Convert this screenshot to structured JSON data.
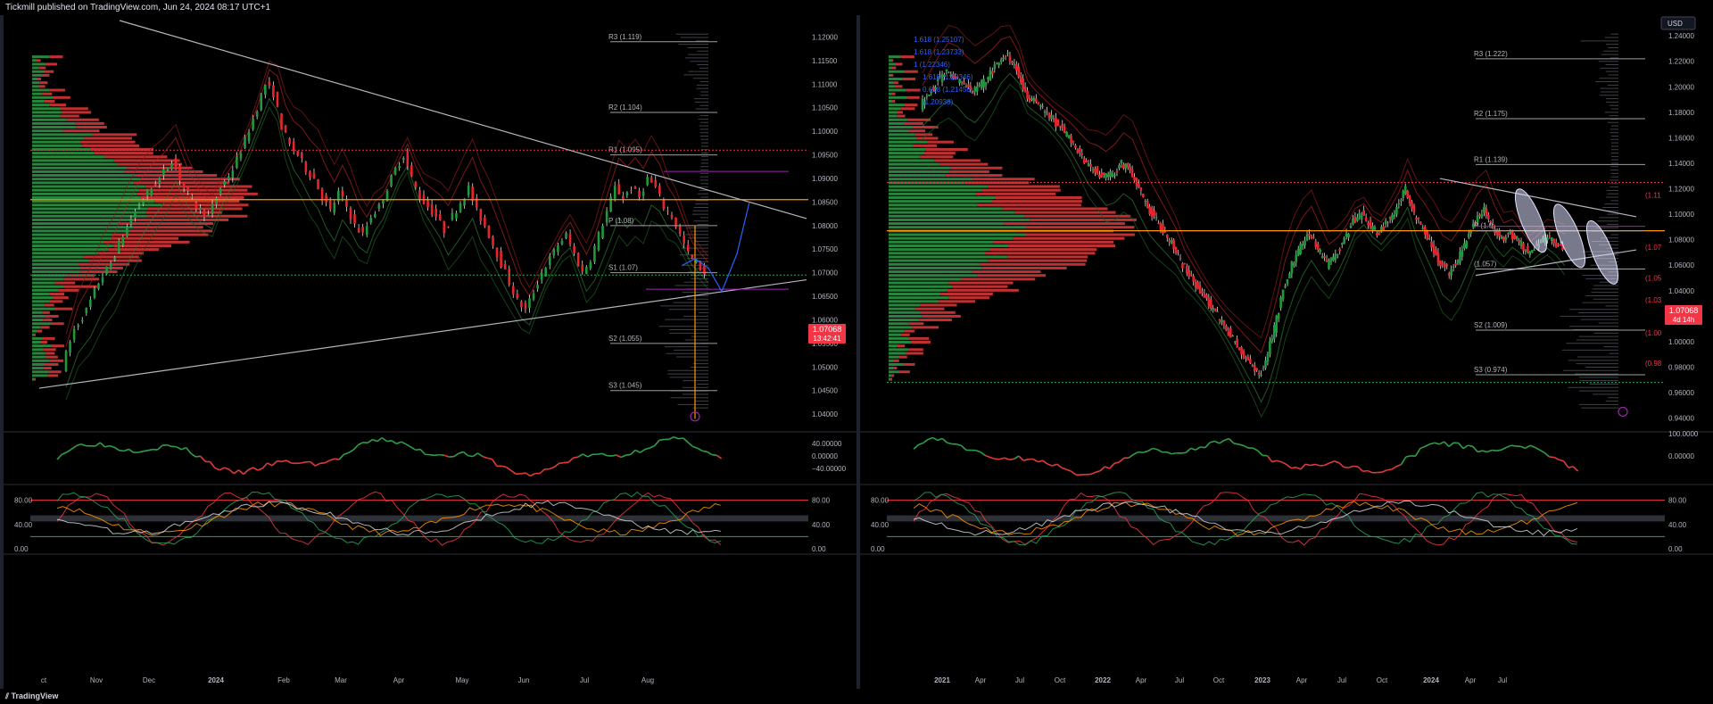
{
  "header": {
    "published_text": "Tickmill published on TradingView.com, Jun 24, 2024 08:17 UTC+1"
  },
  "footer": {
    "logo_text": "TradingView"
  },
  "colors": {
    "up": "#26a65b",
    "down": "#f23645",
    "poc": "#ff9800",
    "pivot": "#9e9e9e",
    "purple": "#9c27b0",
    "blue_path": "#2962ff",
    "trendline": "#b2b5be"
  },
  "chart_data": [
    {
      "type": "candlestick",
      "panel": "left",
      "x_tick_labels": [
        "ct",
        "Nov",
        "Dec",
        "2024",
        "Feb",
        "Mar",
        "Apr",
        "May",
        "Jun",
        "Jul",
        "Aug"
      ],
      "y_tick_labels": [
        "1.12000",
        "1.11500",
        "1.11000",
        "1.10500",
        "1.10000",
        "1.09500",
        "1.09000",
        "1.08500",
        "1.08000",
        "1.07500",
        "1.07000",
        "1.06500",
        "1.06000",
        "1.05500",
        "1.05000",
        "1.04500",
        "1.04000"
      ],
      "ylim": [
        1.037,
        1.1235
      ],
      "price_badge": {
        "price": "1.07068",
        "timer": "13:42:41"
      },
      "close_path": [
        [
          0,
          1.05
        ],
        [
          3,
          1.058
        ],
        [
          6,
          1.062
        ],
        [
          9,
          1.068
        ],
        [
          12,
          1.072
        ],
        [
          15,
          1.078
        ],
        [
          18,
          1.083
        ],
        [
          21,
          1.087
        ],
        [
          24,
          1.09
        ],
        [
          27,
          1.094
        ],
        [
          30,
          1.088
        ],
        [
          33,
          1.084
        ],
        [
          36,
          1.082
        ],
        [
          39,
          1.088
        ],
        [
          42,
          1.092
        ],
        [
          45,
          1.098
        ],
        [
          48,
          1.105
        ],
        [
          50,
          1.11
        ],
        [
          52,
          1.108
        ],
        [
          54,
          1.101
        ],
        [
          56,
          1.097
        ],
        [
          58,
          1.095
        ],
        [
          60,
          1.092
        ],
        [
          62,
          1.09
        ],
        [
          64,
          1.086
        ],
        [
          66,
          1.083
        ],
        [
          68,
          1.087
        ],
        [
          70,
          1.084
        ],
        [
          72,
          1.08
        ],
        [
          74,
          1.078
        ],
        [
          76,
          1.082
        ],
        [
          78,
          1.084
        ],
        [
          80,
          1.088
        ],
        [
          82,
          1.092
        ],
        [
          84,
          1.095
        ],
        [
          86,
          1.09
        ],
        [
          88,
          1.086
        ],
        [
          90,
          1.084
        ],
        [
          92,
          1.082
        ],
        [
          94,
          1.079
        ],
        [
          96,
          1.082
        ],
        [
          98,
          1.085
        ],
        [
          100,
          1.088
        ],
        [
          102,
          1.083
        ],
        [
          104,
          1.08
        ],
        [
          106,
          1.076
        ],
        [
          108,
          1.072
        ],
        [
          110,
          1.068
        ],
        [
          112,
          1.064
        ],
        [
          114,
          1.062
        ],
        [
          116,
          1.066
        ],
        [
          118,
          1.07
        ],
        [
          120,
          1.073
        ],
        [
          122,
          1.076
        ],
        [
          124,
          1.078
        ],
        [
          126,
          1.074
        ],
        [
          128,
          1.07
        ],
        [
          130,
          1.073
        ],
        [
          132,
          1.078
        ],
        [
          134,
          1.083
        ],
        [
          136,
          1.088
        ],
        [
          138,
          1.086
        ],
        [
          140,
          1.088
        ],
        [
          142,
          1.086
        ],
        [
          144,
          1.09
        ],
        [
          146,
          1.088
        ],
        [
          148,
          1.084
        ],
        [
          150,
          1.082
        ],
        [
          152,
          1.078
        ],
        [
          154,
          1.074
        ],
        [
          156,
          1.072
        ],
        [
          158,
          1.07
        ]
      ],
      "horizontal_levels": [
        {
          "name": "R3",
          "price": 1.119,
          "label": "R3 (1.119)"
        },
        {
          "name": "R2",
          "price": 1.104,
          "label": "R2 (1.104)"
        },
        {
          "name": "R1",
          "price": 1.095,
          "label": "R1 (1.095)"
        },
        {
          "name": "P",
          "price": 1.08,
          "label": "P (1.08)"
        },
        {
          "name": "S1",
          "price": 1.07,
          "label": "S1 (1.07)"
        },
        {
          "name": "S2",
          "price": 1.055,
          "label": "S2 (1.055)"
        },
        {
          "name": "S3",
          "price": 1.045,
          "label": "S3 (1.045)"
        }
      ],
      "poc_price": 1.0855,
      "rsi_panel": {
        "y_tick_labels": [
          "40.00000",
          "0.00000",
          "−40.00000"
        ]
      },
      "stoch_panel": {
        "y_tick_labels": [
          "80.00",
          "40.00",
          "0.00"
        ]
      }
    },
    {
      "type": "candlestick",
      "panel": "right",
      "currency": "USD",
      "x_tick_labels": [
        "2021",
        "Apr",
        "Jul",
        "Oct",
        "2022",
        "Apr",
        "Jul",
        "Oct",
        "2023",
        "Apr",
        "Jul",
        "Oct",
        "2024",
        "Apr",
        "Jul"
      ],
      "y_tick_labels": [
        "1.24000",
        "1.22000",
        "1.20000",
        "1.18000",
        "1.16000",
        "1.14000",
        "1.12000",
        "1.10000",
        "1.08000",
        "1.06000",
        "1.04000",
        "1.02000",
        "1.00000",
        "0.98000",
        "0.96000",
        "0.94000"
      ],
      "ylim": [
        0.932,
        1.252
      ],
      "price_badge": {
        "price": "1.07068",
        "timer": "4d 14h"
      },
      "close_path": [
        [
          0,
          1.185
        ],
        [
          4,
          1.195
        ],
        [
          8,
          1.205
        ],
        [
          12,
          1.212
        ],
        [
          16,
          1.208
        ],
        [
          20,
          1.2
        ],
        [
          24,
          1.195
        ],
        [
          28,
          1.202
        ],
        [
          32,
          1.21
        ],
        [
          36,
          1.22
        ],
        [
          40,
          1.225
        ],
        [
          44,
          1.215
        ],
        [
          48,
          1.195
        ],
        [
          52,
          1.188
        ],
        [
          56,
          1.182
        ],
        [
          60,
          1.175
        ],
        [
          64,
          1.168
        ],
        [
          68,
          1.16
        ],
        [
          72,
          1.15
        ],
        [
          76,
          1.14
        ],
        [
          80,
          1.135
        ],
        [
          84,
          1.128
        ],
        [
          88,
          1.132
        ],
        [
          92,
          1.14
        ],
        [
          96,
          1.135
        ],
        [
          100,
          1.12
        ],
        [
          104,
          1.105
        ],
        [
          108,
          1.095
        ],
        [
          112,
          1.085
        ],
        [
          116,
          1.075
        ],
        [
          120,
          1.06
        ],
        [
          124,
          1.05
        ],
        [
          128,
          1.04
        ],
        [
          132,
          1.03
        ],
        [
          136,
          1.02
        ],
        [
          140,
          1.01
        ],
        [
          144,
          1.0
        ],
        [
          148,
          0.99
        ],
        [
          152,
          0.98
        ],
        [
          155,
          0.972
        ],
        [
          158,
          0.985
        ],
        [
          162,
          1.01
        ],
        [
          166,
          1.04
        ],
        [
          170,
          1.06
        ],
        [
          174,
          1.075
        ],
        [
          178,
          1.085
        ],
        [
          182,
          1.072
        ],
        [
          186,
          1.06
        ],
        [
          190,
          1.068
        ],
        [
          194,
          1.08
        ],
        [
          198,
          1.095
        ],
        [
          202,
          1.1
        ],
        [
          206,
          1.09
        ],
        [
          210,
          1.085
        ],
        [
          214,
          1.095
        ],
        [
          218,
          1.105
        ],
        [
          222,
          1.12
        ],
        [
          226,
          1.1
        ],
        [
          230,
          1.088
        ],
        [
          234,
          1.075
        ],
        [
          238,
          1.06
        ],
        [
          242,
          1.055
        ],
        [
          246,
          1.065
        ],
        [
          250,
          1.08
        ],
        [
          254,
          1.095
        ],
        [
          258,
          1.105
        ],
        [
          262,
          1.09
        ],
        [
          266,
          1.08
        ],
        [
          270,
          1.085
        ],
        [
          274,
          1.078
        ],
        [
          278,
          1.07
        ],
        [
          282,
          1.076
        ],
        [
          286,
          1.082
        ],
        [
          290,
          1.078
        ],
        [
          294,
          1.072
        ]
      ],
      "horizontal_levels": [
        {
          "name": "R3",
          "price": 1.222,
          "label": "R3 (1.222)"
        },
        {
          "name": "R2",
          "price": 1.175,
          "label": "R2 (1.175)"
        },
        {
          "name": "R1",
          "price": 1.139,
          "label": "R1 (1.139)"
        },
        {
          "name": "P",
          "price": 1.087,
          "label": "P (1.0"
        },
        {
          "name": "S1",
          "price": 1.057,
          "label": "(1.057)"
        },
        {
          "name": "S2",
          "price": 1.009,
          "label": "S2 (1.009)"
        },
        {
          "name": "S3",
          "price": 0.974,
          "label": "S3 (0.974)"
        }
      ],
      "fib_labels": [
        "1.618 (1.25107)",
        "1.618 (1.23733)",
        "1 (1.22346)",
        "1.618 (1.22346)",
        "0.618 (1.21456)",
        "(1.20938)"
      ],
      "right_edge_labels": [
        {
          "price": 1.115,
          "label": "(1.11"
        },
        {
          "price": 1.074,
          "label": "(1.07"
        },
        {
          "price": 1.05,
          "label": "(1.05"
        },
        {
          "price": 1.033,
          "label": "(1.03"
        },
        {
          "price": 1.007,
          "label": "(1.00"
        },
        {
          "price": 0.983,
          "label": "(0.98"
        }
      ],
      "poc_price": 1.087,
      "rsi_panel": {
        "y_tick_labels": [
          "100.0000",
          "0.00000"
        ]
      },
      "stoch_panel": {
        "y_tick_labels": [
          "80.00",
          "40.00",
          "0.00"
        ]
      }
    }
  ]
}
